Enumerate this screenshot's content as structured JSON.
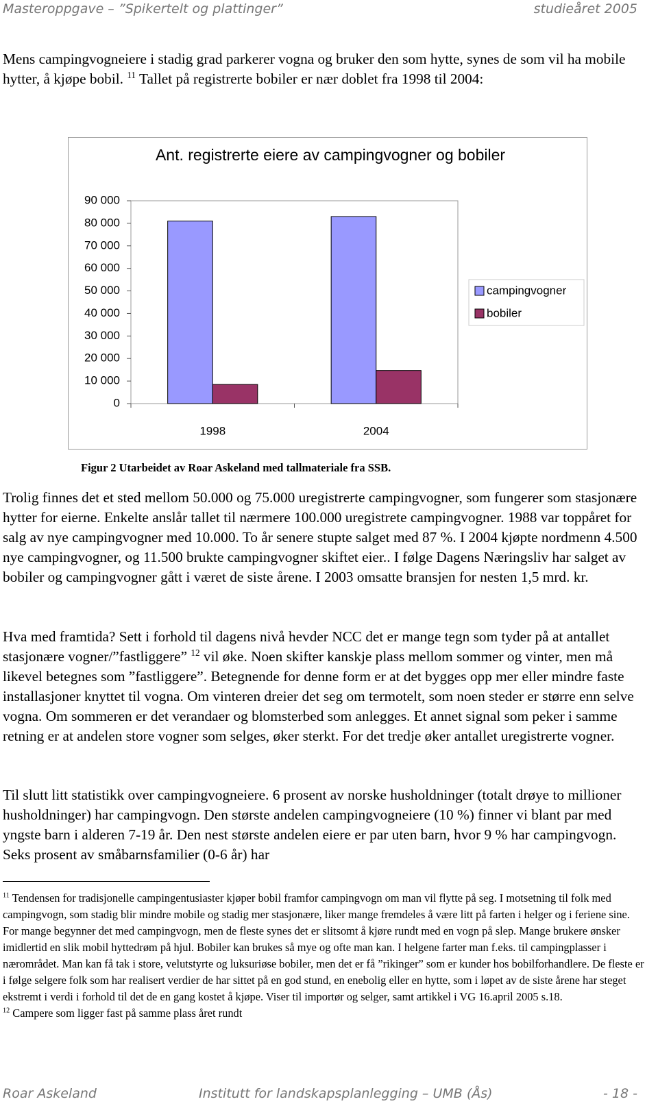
{
  "header": {
    "left": "Masteroppgave – ”Spikertelt og plattinger”",
    "right": "studieåret 2005"
  },
  "paragraphs": [
    [
      {
        "text": "Mens campingvogneiere i stadig grad parkerer vogna og bruker den som hytte, synes de som vil ha mobile hytter, å kjøpe bobil. "
      },
      {
        "sup": "11"
      },
      {
        "text": " Tallet på registrerte bobiler er nær doblet fra 1998 til 2004:"
      }
    ],
    [
      {
        "text": "Trolig finnes det et sted mellom 50.000 og 75.000 uregistrerte campingvogner, som fungerer som stasjonære hytter for eierne. Enkelte anslår tallet til nærmere 100.000 uregistrete campingvogner. 1988 var toppåret for salg av nye campingvogner med 10.000. To år senere stupte salget med 87 %. I 2004 kjøpte nordmenn 4.500 nye campingvogner, og 11.500 brukte campingvogner skiftet eier.. I følge Dagens Næringsliv har salget av bobiler og campingvogner gått i været de siste årene. I 2003 omsatte bransjen for nesten 1,5 mrd. kr."
      }
    ],
    [
      {
        "text": "Hva med framtida? Sett i forhold til dagens nivå hevder NCC det er mange tegn som tyder på at antallet stasjonære vogner/”fastliggere” "
      },
      {
        "sup": "12"
      },
      {
        "text": " vil øke. Noen skifter kanskje plass mellom sommer og vinter, men må likevel betegnes som ”fastliggere”. Betegnende for denne form er at det bygges opp mer eller mindre faste installasjoner knyttet til vogna. Om vinteren dreier det seg om termotelt, som noen steder er større enn selve vogna. Om sommeren er det verandaer og blomsterbed som anlegges. Et annet signal som peker i samme retning er at andelen store vogner som selges, øker sterkt. For det tredje øker antallet uregistrerte vogner."
      }
    ],
    [
      {
        "text": "Til slutt litt statistikk over campingvogneiere. 6 prosent av norske husholdninger (totalt drøye to millioner husholdninger) har campingvogn. Den største andelen campingvogneiere (10 %) finner vi blant par med yngste barn i alderen 7-19 år. Den nest største andelen eiere er par uten barn, hvor 9 % har campingvogn. Seks prosent av småbarnsfamilier (0-6 år) har"
      }
    ]
  ],
  "caption": "Figur 2 Utarbeidet av Roar Askeland med tallmateriale fra SSB.",
  "footnotes": [
    {
      "number": "11",
      "text": "Tendensen for tradisjonelle campingentusiaster kjøper bobil framfor campingvogn om man vil flytte på seg. I motsetning til folk med campingvogn, som stadig blir mindre mobile og stadig mer stasjonære, liker mange fremdeles å være litt på farten i helger og i feriene sine. For mange begynner det med campingvogn, men de fleste synes det er slitsomt å kjøre rundt med en vogn på slep. Mange brukere ønsker imidlertid en slik mobil hyttedrøm på hjul. Bobiler kan brukes så mye og ofte man kan. I helgene farter man f.eks. til campingplasser i nærområdet. Man kan få tak i store, velutstyrte og luksuriøse bobiler, men det er få ”rikinger” som er kunder hos bobilforhandlere. De fleste er i følge selgere folk som har realisert verdier de har sittet på en god stund, en enebolig eller en hytte, som i løpet av de siste årene har steget ekstremt i verdi i forhold til det de en gang kostet å kjøpe. Viser til importør og selger, samt artikkel i VG 16.april 2005 s.18."
    },
    {
      "number": "12",
      "text": "Campere som ligger fast på samme plass året rundt"
    }
  ],
  "footer": {
    "left": "Roar Askeland",
    "center": "Institutt for landskapsplanlegging – UMB (Ås)",
    "right": "- 18 -"
  },
  "chart_data": {
    "type": "bar",
    "title": "Ant. registrerte eiere av campingvogner og bobiler",
    "categories": [
      "1998",
      "2004"
    ],
    "series": [
      {
        "name": "campingvogner",
        "color": "#9999ff",
        "values": [
          81000,
          83000
        ]
      },
      {
        "name": "bobiler",
        "color": "#993366",
        "values": [
          8500,
          14700
        ]
      }
    ],
    "ylim": [
      0,
      90000
    ],
    "yticks": [
      {
        "value": 0,
        "label": "0"
      },
      {
        "value": 10000,
        "label": "10 000"
      },
      {
        "value": 20000,
        "label": "20 000"
      },
      {
        "value": 30000,
        "label": "30 000"
      },
      {
        "value": 40000,
        "label": "40 000"
      },
      {
        "value": 50000,
        "label": "50 000"
      },
      {
        "value": 60000,
        "label": "60 000"
      },
      {
        "value": 70000,
        "label": "70 000"
      },
      {
        "value": 80000,
        "label": "80 000"
      },
      {
        "value": 90000,
        "label": "90 000"
      }
    ],
    "grid": false,
    "legend": "right"
  }
}
